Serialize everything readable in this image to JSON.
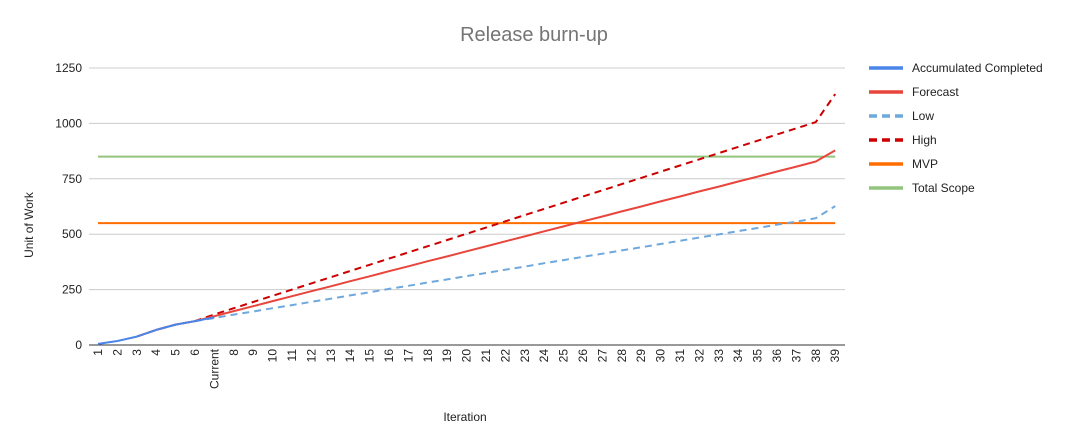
{
  "chart_data": {
    "type": "line",
    "title": "Release burn-up",
    "xlabel": "Iteration",
    "ylabel": "Unit of Work",
    "ylim": [
      0,
      1250
    ],
    "yticks": [
      0,
      250,
      500,
      750,
      1000,
      1250
    ],
    "grid": true,
    "legend_position": "right",
    "categories": [
      "1",
      "2",
      "3",
      "4",
      "5",
      "6",
      "Current",
      "8",
      "9",
      "10",
      "11",
      "12",
      "13",
      "14",
      "15",
      "16",
      "17",
      "18",
      "19",
      "20",
      "21",
      "22",
      "23",
      "24",
      "25",
      "26",
      "27",
      "28",
      "29",
      "30",
      "31",
      "32",
      "33",
      "34",
      "35",
      "36",
      "37",
      "38",
      "39"
    ],
    "series": [
      {
        "name": "Accumulated Completed",
        "color": "#4a86e8",
        "dash": "solid",
        "values": [
          5,
          18,
          38,
          68,
          92,
          108,
          125,
          null,
          null,
          null,
          null,
          null,
          null,
          null,
          null,
          null,
          null,
          null,
          null,
          null,
          null,
          null,
          null,
          null,
          null,
          null,
          null,
          null,
          null,
          null,
          null,
          null,
          null,
          null,
          null,
          null,
          null,
          null,
          null
        ]
      },
      {
        "name": "Forecast",
        "color": "#e8453c",
        "dash": "solid",
        "values": [
          null,
          null,
          38,
          68,
          92,
          108,
          130,
          153,
          175,
          198,
          220,
          243,
          265,
          288,
          310,
          333,
          355,
          378,
          400,
          423,
          445,
          468,
          490,
          513,
          535,
          558,
          580,
          603,
          625,
          648,
          670,
          693,
          715,
          738,
          760,
          783,
          805,
          828,
          878
        ]
      },
      {
        "name": "Low",
        "color": "#6fa8dc",
        "dash": "dashed",
        "values": [
          null,
          null,
          null,
          null,
          null,
          108,
          122,
          137,
          151,
          166,
          180,
          195,
          209,
          224,
          238,
          253,
          267,
          282,
          296,
          311,
          325,
          340,
          354,
          369,
          383,
          398,
          412,
          427,
          441,
          456,
          470,
          485,
          499,
          514,
          528,
          543,
          557,
          572,
          627
        ]
      },
      {
        "name": "High",
        "color": "#cc0000",
        "dash": "dashed",
        "values": [
          null,
          null,
          38,
          68,
          92,
          108,
          138,
          166,
          194,
          222,
          250,
          278,
          306,
          334,
          362,
          390,
          418,
          446,
          474,
          502,
          530,
          558,
          586,
          614,
          642,
          670,
          698,
          726,
          754,
          782,
          810,
          838,
          866,
          894,
          922,
          950,
          978,
          1006,
          1132
        ]
      },
      {
        "name": "MVP",
        "color": "#ff6d01",
        "dash": "solid",
        "values": [
          550,
          550,
          550,
          550,
          550,
          550,
          550,
          550,
          550,
          550,
          550,
          550,
          550,
          550,
          550,
          550,
          550,
          550,
          550,
          550,
          550,
          550,
          550,
          550,
          550,
          550,
          550,
          550,
          550,
          550,
          550,
          550,
          550,
          550,
          550,
          550,
          550,
          550,
          550
        ]
      },
      {
        "name": "Total Scope",
        "color": "#93c47d",
        "dash": "solid",
        "values": [
          850,
          850,
          850,
          850,
          850,
          850,
          850,
          850,
          850,
          850,
          850,
          850,
          850,
          850,
          850,
          850,
          850,
          850,
          850,
          850,
          850,
          850,
          850,
          850,
          850,
          850,
          850,
          850,
          850,
          850,
          850,
          850,
          850,
          850,
          850,
          850,
          850,
          850,
          850
        ]
      }
    ]
  }
}
